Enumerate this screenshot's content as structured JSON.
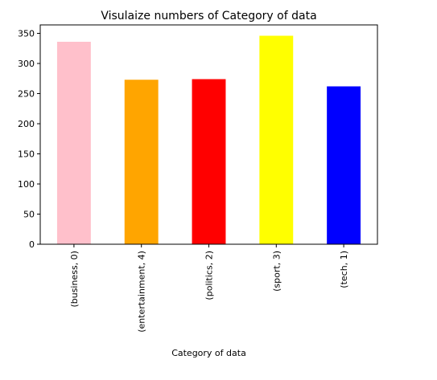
{
  "chart_data": {
    "type": "bar",
    "title": "Visulaize numbers of Category of data",
    "xlabel": "Category of data",
    "ylabel": "",
    "categories": [
      "(business, 0)",
      "(entertainment, 4)",
      "(politics, 2)",
      "(sport, 3)",
      "(tech, 1)"
    ],
    "values": [
      336,
      273,
      274,
      346,
      262
    ],
    "colors": [
      "#ffc0cb",
      "#ffa500",
      "#ff0000",
      "#ffff00",
      "#0000ff"
    ],
    "ylim": [
      0,
      364
    ],
    "yticks": [
      0,
      50,
      100,
      150,
      200,
      250,
      300,
      350
    ],
    "grid": false,
    "legend": "none"
  }
}
